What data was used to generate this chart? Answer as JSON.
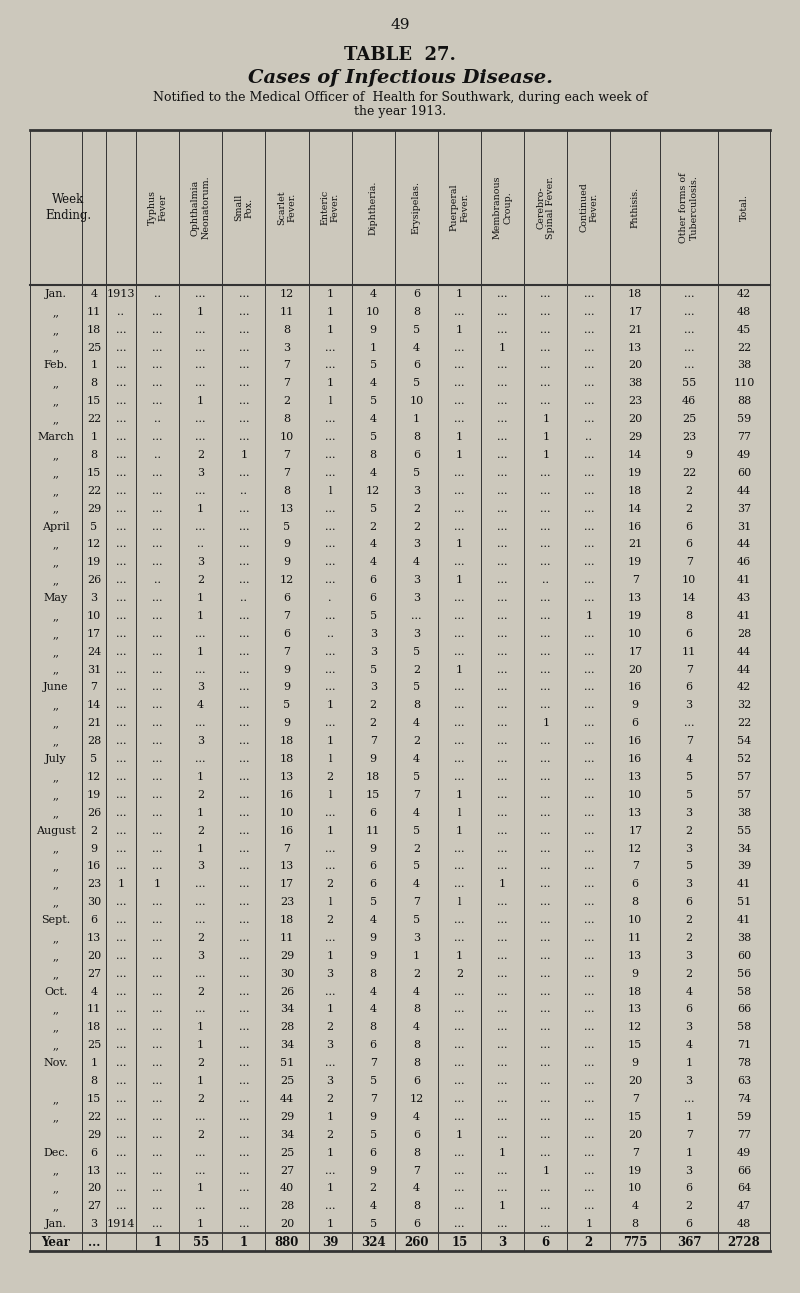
{
  "page_number": "49",
  "title1": "TABLE  27.",
  "title2": "Cases of Infectious Disease.",
  "subtitle1": "Notified to the Medical Officer of  Health for Southwark, during each week of",
  "subtitle2": "the year 1913.",
  "col_headers": [
    "Typhus\nFever",
    "Ophthalmia\nNeonatorum.",
    "Small\nPox.",
    "Scarlet\nFever.",
    "Enteric\nFever.",
    "Diphtheria.",
    "Erysipelas.",
    "Puerperal\nFever.",
    "Membranous\nCroup.",
    "Cerebro-\nSpinal Fever.",
    "Continued\nFever.",
    "Phthisis.",
    "Other forms of\nTuberculosis.",
    "Total."
  ],
  "rows": [
    [
      "Jan.",
      "4",
      "1913",
      "..",
      "...",
      "...",
      "12",
      "1",
      "4",
      "6",
      "1",
      "...",
      "...",
      "...",
      "18",
      "...",
      "42"
    ],
    [
      ",,",
      "11",
      "..",
      "...",
      "1",
      "...",
      "11",
      "1",
      "10",
      "8",
      "...",
      "...",
      "...",
      "...",
      "17",
      "...",
      "48"
    ],
    [
      ",,",
      "18",
      "...",
      "...",
      "...",
      "...",
      "8",
      "1",
      "9",
      "5",
      "1",
      "...",
      "...",
      "...",
      "21",
      "...",
      "45"
    ],
    [
      ",,",
      "25",
      "...",
      "...",
      "...",
      "...",
      "3",
      "...",
      "1",
      "4",
      "...",
      "1",
      "...",
      "...",
      "13",
      "...",
      "22"
    ],
    [
      "Feb.",
      "1",
      "...",
      "...",
      "...",
      "...",
      "7",
      "...",
      "5",
      "6",
      "...",
      "...",
      "...",
      "...",
      "20",
      "...",
      "38"
    ],
    [
      ",,",
      "8",
      "...",
      "...",
      "...",
      "...",
      "7",
      "1",
      "4",
      "5",
      "...",
      "...",
      "...",
      "...",
      "38",
      "55",
      "110"
    ],
    [
      ",,",
      "15",
      "...",
      "...",
      "1",
      "...",
      "2",
      "l",
      "5",
      "10",
      "...",
      "...",
      "...",
      "...",
      "23",
      "46",
      "88"
    ],
    [
      ",,",
      "22",
      "...",
      "..",
      "...",
      "...",
      "8",
      "...",
      "4",
      "1",
      "...",
      "...",
      "1",
      "...",
      "20",
      "25",
      "59"
    ],
    [
      "March",
      "1",
      "...",
      "...",
      "...",
      "...",
      "10",
      "...",
      "5",
      "8",
      "1",
      "...",
      "1",
      "..",
      "29",
      "23",
      "77"
    ],
    [
      ",,",
      "8",
      "...",
      "..",
      "2",
      "1",
      "7",
      "...",
      "8",
      "6",
      "1",
      "...",
      "1",
      "...",
      "14",
      "9",
      "49"
    ],
    [
      ",,",
      "15",
      "...",
      "...",
      "3",
      "...",
      "7",
      "...",
      "4",
      "5",
      "...",
      "...",
      "...",
      "...",
      "19",
      "22",
      "60"
    ],
    [
      ",,",
      "22",
      "...",
      "...",
      "...",
      "..",
      "8",
      "l",
      "12",
      "3",
      "...",
      "...",
      "...",
      "...",
      "18",
      "2",
      "44"
    ],
    [
      ",,",
      "29",
      "...",
      "...",
      "1",
      "...",
      "13",
      "...",
      "5",
      "2",
      "...",
      "...",
      "...",
      "...",
      "14",
      "2",
      "37"
    ],
    [
      "April",
      "5",
      "...",
      "...",
      "...",
      "...",
      "5",
      "...",
      "2",
      "2",
      "...",
      "...",
      "...",
      "...",
      "16",
      "6",
      "31"
    ],
    [
      ",,",
      "12",
      "...",
      "...",
      "..",
      "...",
      "9",
      "...",
      "4",
      "3",
      "1",
      "...",
      "...",
      "...",
      "21",
      "6",
      "44"
    ],
    [
      ",,",
      "19",
      "...",
      "...",
      "3",
      "...",
      "9",
      "...",
      "4",
      "4",
      "...",
      "...",
      "...",
      "...",
      "19",
      "7",
      "46"
    ],
    [
      ",,",
      "26",
      "...",
      "..",
      "2",
      "...",
      "12",
      "...",
      "6",
      "3",
      "1",
      "...",
      "..",
      "...",
      "7",
      "10",
      "41"
    ],
    [
      "May",
      "3",
      "...",
      "...",
      "1",
      "..",
      "6",
      ".",
      "6",
      "3",
      "...",
      "...",
      "...",
      "...",
      "13",
      "14",
      "43"
    ],
    [
      ",,",
      "10",
      "...",
      "...",
      "1",
      "...",
      "7",
      "...",
      "5",
      "...",
      "...",
      "...",
      "...",
      "1",
      "19",
      "8",
      "41"
    ],
    [
      ",,",
      "17",
      "...",
      "...",
      "...",
      "...",
      "6",
      "..",
      "3",
      "3",
      "...",
      "...",
      "...",
      "...",
      "10",
      "6",
      "28"
    ],
    [
      ",,",
      "24",
      "...",
      "...",
      "1",
      "...",
      "7",
      "...",
      "3",
      "5",
      "...",
      "...",
      "...",
      "...",
      "17",
      "11",
      "44"
    ],
    [
      ",,",
      "31",
      "...",
      "...",
      "...",
      "...",
      "9",
      "...",
      "5",
      "2",
      "1",
      "...",
      "...",
      "...",
      "20",
      "7",
      "44"
    ],
    [
      "June",
      "7",
      "...",
      "...",
      "3",
      "...",
      "9",
      "...",
      "3",
      "5",
      "...",
      "...",
      "...",
      "...",
      "16",
      "6",
      "42"
    ],
    [
      ",,",
      "14",
      "...",
      "...",
      "4",
      "...",
      "5",
      "1",
      "2",
      "8",
      "...",
      "...",
      "...",
      "...",
      "9",
      "3",
      "32"
    ],
    [
      ",,",
      "21",
      "...",
      "...",
      "...",
      "...",
      "9",
      "...",
      "2",
      "4",
      "...",
      "...",
      "1",
      "...",
      "6",
      "...",
      "22"
    ],
    [
      ",,",
      "28",
      "...",
      "...",
      "3",
      "...",
      "18",
      "1",
      "7",
      "2",
      "...",
      "...",
      "...",
      "...",
      "16",
      "7",
      "54"
    ],
    [
      "July",
      "5",
      "...",
      "...",
      "...",
      "...",
      "18",
      "l",
      "9",
      "4",
      "...",
      "...",
      "...",
      "...",
      "16",
      "4",
      "52"
    ],
    [
      ",,",
      "12",
      "...",
      "...",
      "1",
      "...",
      "13",
      "2",
      "18",
      "5",
      "...",
      "...",
      "...",
      "...",
      "13",
      "5",
      "57"
    ],
    [
      ",,",
      "19",
      "...",
      "...",
      "2",
      "...",
      "16",
      "l",
      "15",
      "7",
      "1",
      "...",
      "...",
      "...",
      "10",
      "5",
      "57"
    ],
    [
      ",,",
      "26",
      "...",
      "...",
      "1",
      "...",
      "10",
      "...",
      "6",
      "4",
      "l",
      "...",
      "...",
      "...",
      "13",
      "3",
      "38"
    ],
    [
      "August",
      "2",
      "...",
      "...",
      "2",
      "...",
      "16",
      "1",
      "11",
      "5",
      "1",
      "...",
      "...",
      "...",
      "17",
      "2",
      "55"
    ],
    [
      ",,",
      "9",
      "...",
      "...",
      "1",
      "...",
      "7",
      "...",
      "9",
      "2",
      "...",
      "...",
      "...",
      "...",
      "12",
      "3",
      "34"
    ],
    [
      ",,",
      "16",
      "...",
      "...",
      "3",
      "...",
      "13",
      "...",
      "6",
      "5",
      "...",
      "...",
      "...",
      "...",
      "7",
      "5",
      "39"
    ],
    [
      ",,",
      "23",
      "1",
      "1",
      "...",
      "...",
      "17",
      "2",
      "6",
      "4",
      "...",
      "1",
      "...",
      "...",
      "6",
      "3",
      "41"
    ],
    [
      ",,",
      "30",
      "...",
      "...",
      "...",
      "...",
      "23",
      "l",
      "5",
      "7",
      "l",
      "...",
      "...",
      "...",
      "8",
      "6",
      "51"
    ],
    [
      "Sept.",
      "6",
      "...",
      "...",
      "...",
      "...",
      "18",
      "2",
      "4",
      "5",
      "...",
      "...",
      "...",
      "...",
      "10",
      "2",
      "41"
    ],
    [
      ",,",
      "13",
      "...",
      "...",
      "2",
      "...",
      "11",
      "...",
      "9",
      "3",
      "...",
      "...",
      "...",
      "...",
      "11",
      "2",
      "38"
    ],
    [
      ",,",
      "20",
      "...",
      "...",
      "3",
      "...",
      "29",
      "1",
      "9",
      "1",
      "1",
      "...",
      "...",
      "...",
      "13",
      "3",
      "60"
    ],
    [
      ",,",
      "27",
      "...",
      "...",
      "...",
      "...",
      "30",
      "3",
      "8",
      "2",
      "2",
      "...",
      "...",
      "...",
      "9",
      "2",
      "56"
    ],
    [
      "Oct.",
      "4",
      "...",
      "...",
      "2",
      "...",
      "26",
      "...",
      "4",
      "4",
      "...",
      "...",
      "...",
      "...",
      "18",
      "4",
      "58"
    ],
    [
      ",,",
      "11",
      "...",
      "...",
      "...",
      "...",
      "34",
      "1",
      "4",
      "8",
      "...",
      "...",
      "...",
      "...",
      "13",
      "6",
      "66"
    ],
    [
      ",,",
      "18",
      "...",
      "...",
      "1",
      "...",
      "28",
      "2",
      "8",
      "4",
      "...",
      "...",
      "...",
      "...",
      "12",
      "3",
      "58"
    ],
    [
      ",,",
      "25",
      "...",
      "...",
      "1",
      "...",
      "34",
      "3",
      "6",
      "8",
      "...",
      "...",
      "...",
      "...",
      "15",
      "4",
      "71"
    ],
    [
      "Nov.",
      "1",
      "...",
      "...",
      "2",
      "...",
      "51",
      "...",
      "7",
      "8",
      "...",
      "...",
      "...",
      "...",
      "9",
      "1",
      "78"
    ],
    [
      "",
      "8",
      "...",
      "...",
      "1",
      "...",
      "25",
      "3",
      "5",
      "6",
      "...",
      "...",
      "...",
      "...",
      "20",
      "3",
      "63"
    ],
    [
      ",,",
      "15",
      "...",
      "...",
      "2",
      "...",
      "44",
      "2",
      "7",
      "12",
      "...",
      "...",
      "...",
      "...",
      "7",
      "...",
      "74"
    ],
    [
      ",,",
      "22",
      "...",
      "...",
      "...",
      "...",
      "29",
      "1",
      "9",
      "4",
      "...",
      "...",
      "...",
      "...",
      "15",
      "1",
      "59"
    ],
    [
      "",
      "29",
      "...",
      "...",
      "2",
      "...",
      "34",
      "2",
      "5",
      "6",
      "1",
      "...",
      "...",
      "...",
      "20",
      "7",
      "77"
    ],
    [
      "Dec.",
      "6",
      "...",
      "...",
      "...",
      "...",
      "25",
      "1",
      "6",
      "8",
      "...",
      "1",
      "...",
      "...",
      "7",
      "1",
      "49"
    ],
    [
      ",,",
      "13",
      "...",
      "...",
      "...",
      "...",
      "27",
      "...",
      "9",
      "7",
      "...",
      "...",
      "1",
      "...",
      "19",
      "3",
      "66"
    ],
    [
      ",,",
      "20",
      "...",
      "...",
      "1",
      "...",
      "40",
      "1",
      "2",
      "4",
      "...",
      "...",
      "...",
      "...",
      "10",
      "6",
      "64"
    ],
    [
      ",,",
      "27",
      "...",
      "...",
      "...",
      "...",
      "28",
      "...",
      "4",
      "8",
      "...",
      "1",
      "...",
      "...",
      "4",
      "2",
      "47"
    ],
    [
      "Jan.",
      "3",
      "1914",
      "...",
      "1",
      "...",
      "20",
      "1",
      "5",
      "6",
      "...",
      "...",
      "...",
      "1",
      "8",
      "6",
      "48"
    ],
    [
      "Year",
      "...",
      "",
      "1",
      "55",
      "1",
      "880",
      "39",
      "324",
      "260",
      "15",
      "3",
      "6",
      "2",
      "775",
      "367",
      "2728"
    ]
  ],
  "bg_color": "#ccc8bc",
  "table_bg": "#e8e4d8",
  "text_color": "#111111",
  "line_color": "#333333"
}
